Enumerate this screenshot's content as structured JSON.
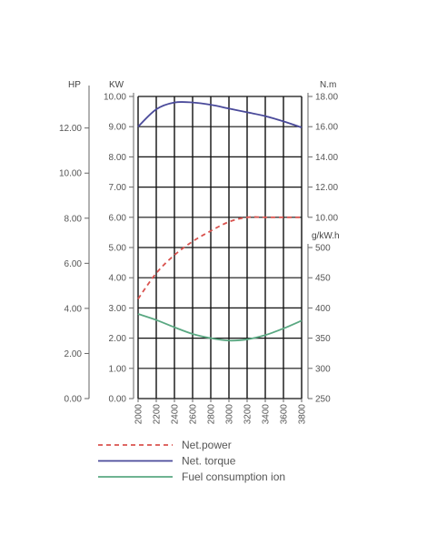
{
  "chart_data": {
    "type": "line",
    "x": [
      2000,
      2200,
      2400,
      2600,
      2800,
      3000,
      3200,
      3400,
      3600,
      3800
    ],
    "x_ticks": [
      "2000",
      "2200",
      "2400",
      "2600",
      "2800",
      "3000",
      "3200",
      "3400",
      "3600",
      "3800"
    ],
    "xlim": [
      2000,
      3800
    ],
    "axes": {
      "hp": {
        "unit": "HP",
        "ticks": [
          "0.00",
          "2.00",
          "4.00",
          "6.00",
          "8.00",
          "10.00",
          "12.00"
        ],
        "range": [
          0,
          13.4
        ]
      },
      "kw": {
        "unit": "KW",
        "ticks": [
          "0.00",
          "1.00",
          "2.00",
          "3.00",
          "4.00",
          "5.00",
          "6.00",
          "7.00",
          "8.00",
          "9.00",
          "10.00"
        ],
        "range": [
          0,
          10
        ]
      },
      "torque": {
        "unit": "N.m",
        "ticks": [
          "10.00",
          "12.00",
          "14.00",
          "16.00",
          "18.00"
        ],
        "range": [
          10,
          18
        ]
      },
      "fuel": {
        "unit": "g/kW.h",
        "ticks": [
          "250",
          "300",
          "350",
          "400",
          "450",
          "500"
        ],
        "range": [
          250,
          500
        ]
      }
    },
    "series": [
      {
        "name": "Net.power",
        "axis": "kw",
        "color": "#d9534f",
        "style": "dashed",
        "values": [
          3.3,
          4.15,
          4.75,
          5.2,
          5.55,
          5.85,
          6.0,
          6.0,
          6.0,
          6.0
        ]
      },
      {
        "name": "Net. torque",
        "axis": "torque",
        "color": "#4a4a9a",
        "style": "solid",
        "values": [
          16.0,
          17.15,
          17.6,
          17.6,
          17.45,
          17.2,
          16.95,
          16.7,
          16.35,
          15.95
        ]
      },
      {
        "name": "Fuel consumption ion",
        "axis": "fuel",
        "color": "#5aa882",
        "style": "solid",
        "values": [
          390,
          380,
          368,
          357,
          350,
          346,
          348,
          355,
          366,
          379
        ]
      }
    ],
    "grid": true,
    "legend_position": "bottom"
  }
}
